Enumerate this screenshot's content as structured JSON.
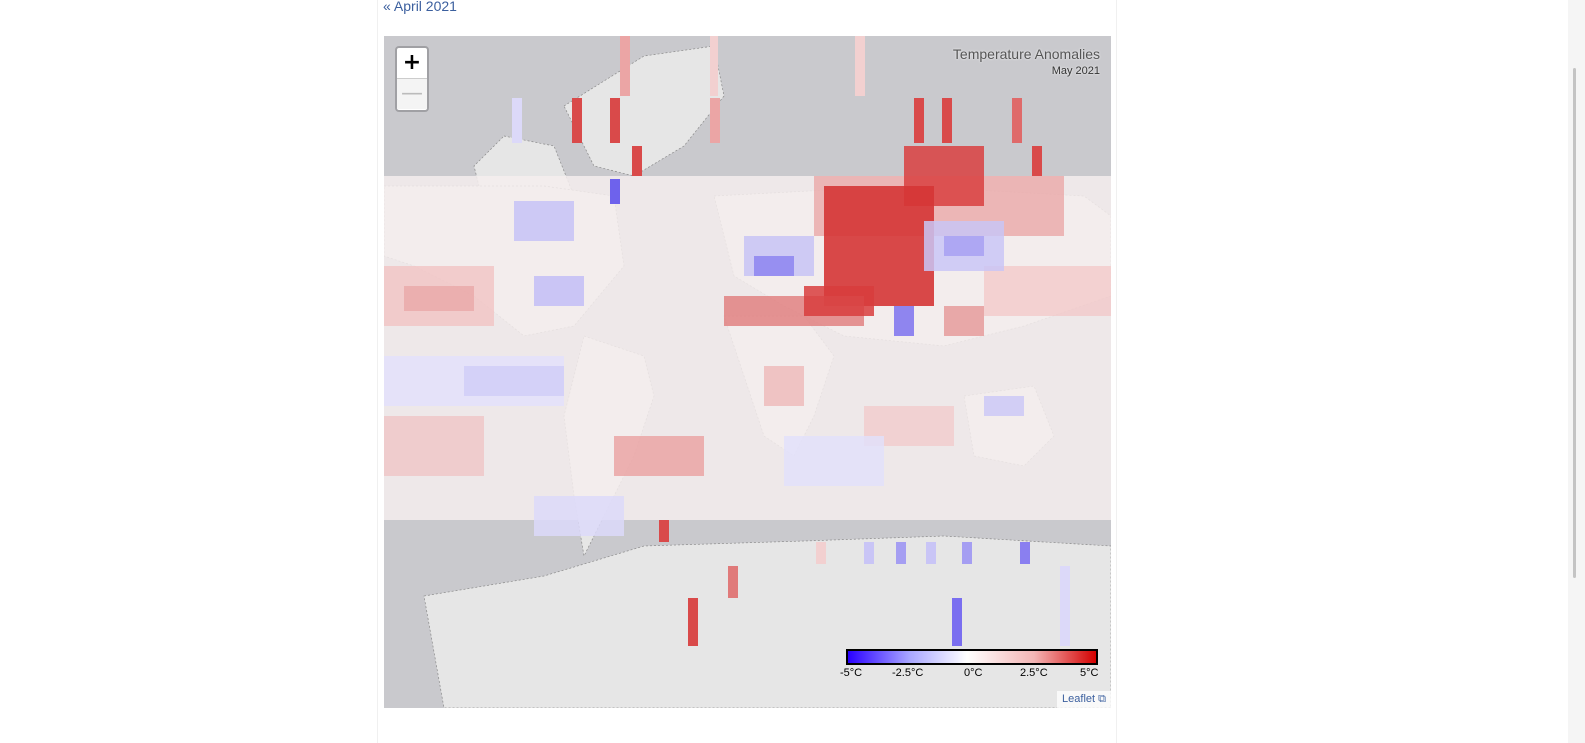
{
  "nav": {
    "prev_label": "« April 2021"
  },
  "map": {
    "title": "Temperature Anomalies",
    "subtitle": "May 2021",
    "zoom_in_label": "+",
    "zoom_out_label": "—",
    "attribution": "Leaflet",
    "attribution_icon": "external-link-icon"
  },
  "legend": {
    "labels": [
      "-5°C",
      "-2.5°C",
      "0°C",
      "2.5°C",
      "5°C"
    ],
    "range": [
      -5,
      5
    ],
    "colors": {
      "min": "#2a00ff",
      "mid": "#ffffff",
      "max": "#d40000"
    }
  },
  "colors": {
    "no_data": "#c9c9cd",
    "land": "#e6e6e6",
    "link": "#3b5f9e"
  }
}
